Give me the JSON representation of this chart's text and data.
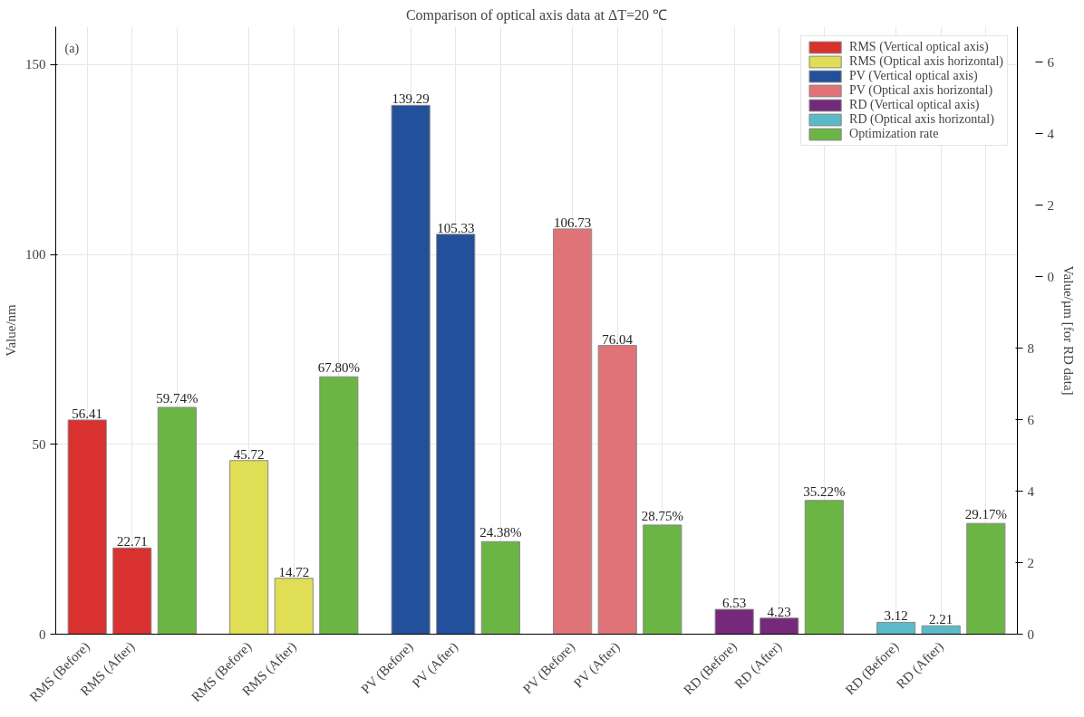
{
  "chart_data": {
    "type": "bar",
    "title": "Comparison of optical axis data at ΔT=20 ℃",
    "ylabel": "Value/nm",
    "y2label": "Value/µm [for RD data]",
    "annotations": [
      "(a)"
    ],
    "categories": [
      "RMS (Before)",
      "RMS (After)",
      null,
      "RMS (Before)",
      "RMS (After)",
      null,
      "PV (Before)",
      "PV (After)",
      null,
      "PV (Before)",
      "PV (After)",
      null,
      "RD (Before)",
      "RD (After)",
      null,
      "RD (Before)",
      "RD (After)",
      null
    ],
    "series": [
      {
        "name": "RMS (Vertical optical axis)",
        "color": "#d93030",
        "values": [
          56.41,
          22.71,
          null,
          null,
          null,
          null,
          null,
          null,
          null,
          null,
          null,
          null,
          null,
          null,
          null,
          null,
          null,
          null
        ],
        "value_labels": [
          "56.41",
          "22.71",
          null,
          null,
          null,
          null,
          null,
          null,
          null,
          null,
          null,
          null,
          null,
          null,
          null,
          null,
          null,
          null
        ]
      },
      {
        "name": "RMS (Optical axis horizontal)",
        "color": "#e0de55",
        "values": [
          null,
          null,
          null,
          45.72,
          14.72,
          null,
          null,
          null,
          null,
          null,
          null,
          null,
          null,
          null,
          null,
          null,
          null,
          null
        ],
        "value_labels": [
          null,
          null,
          null,
          "45.72",
          "14.72",
          null,
          null,
          null,
          null,
          null,
          null,
          null,
          null,
          null,
          null,
          null,
          null,
          null
        ]
      },
      {
        "name": "PV (Vertical optical axis)",
        "color": "#23509a",
        "values": [
          null,
          null,
          null,
          null,
          null,
          null,
          139.29,
          105.33,
          null,
          null,
          null,
          null,
          null,
          null,
          null,
          null,
          null,
          null
        ],
        "value_labels": [
          null,
          null,
          null,
          null,
          null,
          null,
          "139.29",
          "105.33",
          null,
          null,
          null,
          null,
          null,
          null,
          null,
          null,
          null,
          null
        ]
      },
      {
        "name": "PV (Optical axis horizontal)",
        "color": "#e07378",
        "values": [
          null,
          null,
          null,
          null,
          null,
          null,
          null,
          null,
          null,
          106.73,
          76.04,
          null,
          null,
          null,
          null,
          null,
          null,
          null
        ],
        "value_labels": [
          null,
          null,
          null,
          null,
          null,
          null,
          null,
          null,
          null,
          "106.73",
          "76.04",
          null,
          null,
          null,
          null,
          null,
          null,
          null
        ]
      },
      {
        "name": "RD (Vertical optical axis)",
        "color": "#74297a",
        "values": [
          null,
          null,
          null,
          null,
          null,
          null,
          null,
          null,
          null,
          null,
          null,
          null,
          6.53,
          4.23,
          null,
          null,
          null,
          null
        ],
        "value_labels": [
          null,
          null,
          null,
          null,
          null,
          null,
          null,
          null,
          null,
          null,
          null,
          null,
          "6.53",
          "4.23",
          null,
          null,
          null,
          null
        ]
      },
      {
        "name": "RD (Optical axis horizontal)",
        "color": "#5bbac8",
        "values": [
          null,
          null,
          null,
          null,
          null,
          null,
          null,
          null,
          null,
          null,
          null,
          null,
          null,
          null,
          null,
          3.12,
          2.21,
          null
        ],
        "value_labels": [
          null,
          null,
          null,
          null,
          null,
          null,
          null,
          null,
          null,
          null,
          null,
          null,
          null,
          null,
          null,
          "3.12",
          "2.21",
          null
        ]
      },
      {
        "name": "Optimization rate",
        "color": "#6bb544",
        "values": [
          null,
          null,
          59.74,
          null,
          null,
          67.8,
          null,
          null,
          24.38,
          null,
          null,
          28.75,
          null,
          null,
          35.22,
          null,
          null,
          29.17
        ],
        "value_labels": [
          null,
          null,
          "59.74%",
          null,
          null,
          "67.80%",
          null,
          null,
          "24.38%",
          null,
          null,
          "28.75%",
          null,
          null,
          "35.22%",
          null,
          null,
          "29.17%"
        ]
      }
    ],
    "ylim": [
      0,
      160
    ],
    "yticks": [
      0,
      50,
      100,
      150
    ],
    "y2lim": [
      0,
      17
    ],
    "y2ticks": [
      0,
      2,
      4,
      6,
      8
    ],
    "y3lim": [
      -10,
      7
    ],
    "y3ticks": [
      0,
      2,
      4,
      6
    ],
    "grid": true,
    "legend": "top right"
  }
}
